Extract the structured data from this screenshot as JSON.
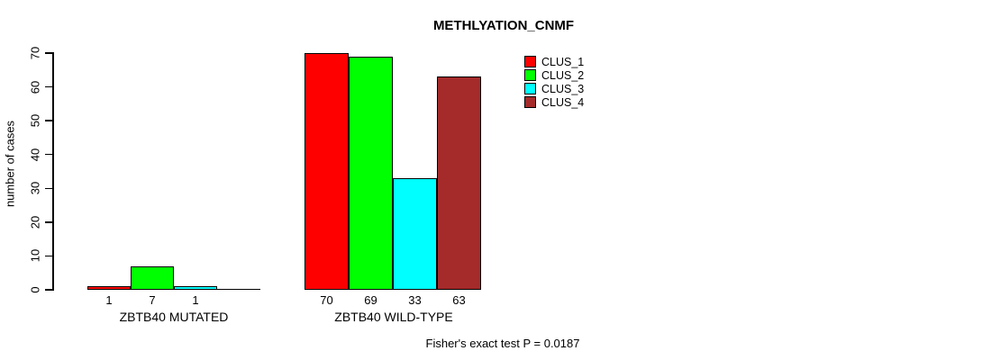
{
  "chart_data": {
    "type": "bar",
    "title": "METHLYATION_CNMF",
    "xlabel": "",
    "ylabel": "number of cases",
    "ylim": [
      0,
      70
    ],
    "yticks": [
      0,
      10,
      20,
      30,
      40,
      50,
      60,
      70
    ],
    "grid": false,
    "categories": [
      "ZBTB40 MUTATED",
      "ZBTB40 WILD-TYPE"
    ],
    "series": [
      {
        "name": "CLUS_1",
        "color": "#FF0000",
        "values": [
          1,
          70
        ]
      },
      {
        "name": "CLUS_2",
        "color": "#00FF00",
        "values": [
          7,
          69
        ]
      },
      {
        "name": "CLUS_3",
        "color": "#00FFFF",
        "values": [
          1,
          33
        ]
      },
      {
        "name": "CLUS_4",
        "color": "#A52A2A",
        "values": [
          0,
          63
        ]
      }
    ],
    "bar_value_labels": [
      [
        "1",
        "7",
        "1",
        ""
      ],
      [
        "70",
        "69",
        "33",
        "63"
      ]
    ],
    "legend_position": "top-right",
    "axis_color": "#000000",
    "bar_border_color": "#000000",
    "caption": "Fisher's exact test P = 0.0187"
  }
}
